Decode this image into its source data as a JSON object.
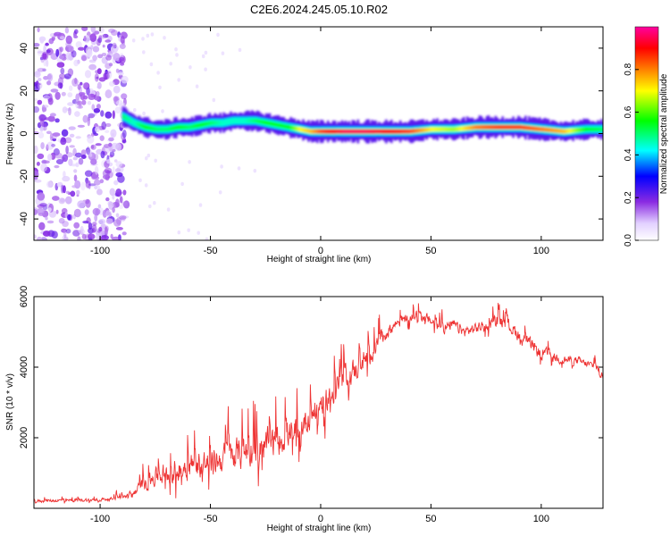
{
  "title": "C2E6.2024.245.05.10.R02",
  "chart_data": [
    {
      "type": "heatmap",
      "xlabel": "Height of straight line (km)",
      "ylabel": "Frequency (Hz)",
      "xlim": [
        -130,
        128
      ],
      "ylim": [
        -50,
        50
      ],
      "xticks": [
        -100,
        -50,
        0,
        50,
        100
      ],
      "yticks": [
        -40,
        -20,
        0,
        20,
        40
      ],
      "colorbar": {
        "label": "Normalized spectral amplitude",
        "range": [
          0.0,
          1.0
        ],
        "ticks": [
          "0.0",
          "0.2",
          "0.4",
          "0.6",
          "0.8"
        ],
        "colormap": [
          "#ffffff",
          "#e8d8ff",
          "#8a2be2",
          "#0000ff",
          "#00ffff",
          "#00ff00",
          "#ffff00",
          "#ff8000",
          "#ff0000",
          "#ff00a0"
        ]
      },
      "noise_region": {
        "x": [
          -130,
          -88
        ],
        "freq": [
          -50,
          50
        ],
        "amplitude": 0.2
      },
      "ridge": {
        "x": [
          -90,
          -85,
          -80,
          -75,
          -70,
          -65,
          -60,
          -55,
          -50,
          -45,
          -40,
          -35,
          -30,
          -25,
          -20,
          -15,
          -10,
          -5,
          0,
          5,
          10,
          20,
          30,
          40,
          50,
          60,
          70,
          80,
          90,
          100,
          110,
          120,
          128
        ],
        "freq": [
          8,
          5,
          3,
          2,
          2,
          3,
          3,
          4,
          5,
          5,
          6,
          6,
          6,
          5,
          4,
          3,
          2,
          1,
          1,
          1,
          1,
          1,
          1,
          1,
          2,
          2,
          3,
          3,
          3,
          2,
          1,
          2,
          2
        ],
        "amplitude": [
          0.5,
          0.45,
          0.55,
          0.5,
          0.5,
          0.55,
          0.5,
          0.55,
          0.5,
          0.45,
          0.45,
          0.45,
          0.5,
          0.55,
          0.55,
          0.55,
          0.7,
          0.75,
          0.85,
          0.9,
          0.95,
          0.95,
          0.9,
          0.85,
          0.7,
          0.65,
          0.8,
          0.85,
          0.85,
          0.8,
          0.75,
          0.55,
          0.5
        ]
      }
    },
    {
      "type": "line",
      "xlabel": "Height of straight line (km)",
      "ylabel": "SNR (10 * v/v)",
      "xlim": [
        -130,
        128
      ],
      "ylim": [
        0,
        6000
      ],
      "xticks": [
        -100,
        -50,
        0,
        50,
        100
      ],
      "yticks": [
        2000,
        4000,
        6000
      ],
      "color": "#ee3333",
      "series": [
        {
          "x": [
            -130,
            -120,
            -110,
            -100,
            -90,
            -85,
            -80,
            -75,
            -70,
            -65,
            -60,
            -55,
            -50,
            -45,
            -40,
            -35,
            -30,
            -25,
            -20,
            -15,
            -10,
            -5,
            0,
            5,
            10,
            15,
            20,
            25,
            30,
            35,
            40,
            45,
            50,
            55,
            60,
            65,
            70,
            75,
            80,
            85,
            90,
            95,
            100,
            105,
            110,
            115,
            120,
            125,
            128
          ],
          "mean": [
            200,
            220,
            230,
            250,
            300,
            450,
            700,
            900,
            1000,
            1100,
            1200,
            1250,
            1300,
            1400,
            1500,
            1600,
            1650,
            1750,
            1900,
            2100,
            2300,
            2600,
            3000,
            3300,
            3700,
            3900,
            4200,
            4600,
            5000,
            5300,
            5400,
            5500,
            5300,
            5100,
            5200,
            5000,
            5100,
            5200,
            5300,
            5200,
            4900,
            4600,
            4400,
            4300,
            4200,
            4200,
            4100,
            4000,
            3700
          ],
          "spread": [
            120,
            120,
            120,
            120,
            130,
            250,
            500,
            700,
            800,
            900,
            1000,
            1000,
            1000,
            1050,
            1100,
            1150,
            1150,
            1150,
            1150,
            1100,
            1050,
            1000,
            1000,
            950,
            900,
            850,
            800,
            700,
            500,
            400,
            350,
            350,
            400,
            450,
            400,
            400,
            400,
            400,
            500,
            500,
            500,
            500,
            450,
            400,
            350,
            300,
            300,
            300,
            300
          ]
        }
      ]
    }
  ]
}
